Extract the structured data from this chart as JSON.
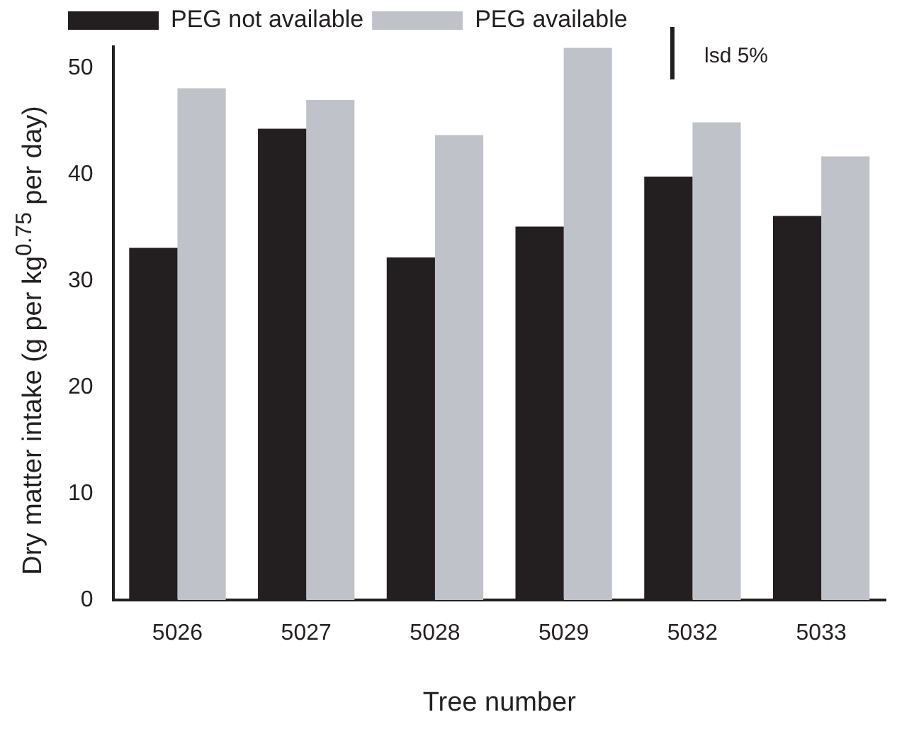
{
  "chart_data": {
    "type": "bar",
    "xlabel": "Tree number",
    "ylabel": "Dry matter intake (g per kg$^{0.75}$ per day)",
    "categories": [
      "5026",
      "5027",
      "5028",
      "5029",
      "5032",
      "5033"
    ],
    "series": [
      {
        "name": "PEG not available",
        "color": "#231f20",
        "values": [
          33.1,
          44.3,
          32.2,
          35.1,
          39.8,
          36.1
        ]
      },
      {
        "name": "PEG available",
        "color": "#c0c2c9",
        "values": [
          48.1,
          47.0,
          43.7,
          51.9,
          44.9,
          41.7
        ]
      }
    ],
    "ylim": [
      0,
      52
    ],
    "yticks": [
      0,
      10,
      20,
      30,
      40,
      50
    ],
    "grid": false,
    "legend": "top",
    "annotations": [
      "lsd 5%"
    ]
  }
}
